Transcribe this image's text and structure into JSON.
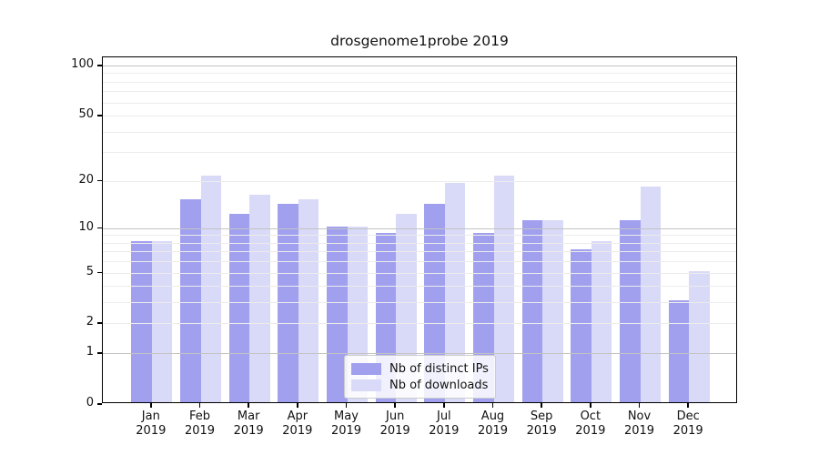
{
  "header": {
    "title": "drosgenome1probe 2019"
  },
  "chart_data": {
    "type": "bar",
    "title": "drosgenome1probe 2019",
    "categories": [
      "Jan",
      "Feb",
      "Mar",
      "Apr",
      "May",
      "Jun",
      "Jul",
      "Aug",
      "Sep",
      "Oct",
      "Nov",
      "Dec"
    ],
    "x_sublabel": "2019",
    "series": [
      {
        "name": "Nb of distinct IPs",
        "color": "#a0a0ef",
        "values": [
          8,
          15,
          12,
          14,
          10,
          9,
          14,
          9,
          11,
          7,
          11,
          3
        ]
      },
      {
        "name": "Nb of downloads",
        "color": "#d9d9f8",
        "values": [
          8,
          21,
          16,
          15,
          10,
          12,
          19,
          21,
          11,
          8,
          18,
          5
        ]
      }
    ],
    "xlabel": "",
    "ylabel": "",
    "scale": "log1p",
    "ylim": [
      0,
      112
    ],
    "yticks": [
      0,
      1,
      2,
      5,
      10,
      20,
      50,
      100
    ],
    "grid_major": [
      1,
      10,
      100
    ],
    "grid_minor": [
      2,
      3,
      4,
      5,
      6,
      7,
      8,
      9,
      20,
      30,
      40,
      50,
      60,
      70,
      80,
      90
    ],
    "grid": true,
    "legend_position": "lower-center",
    "colors": {
      "spine": "#000000",
      "grid_major": "#c3c3c3",
      "grid_minor": "#ececec",
      "legend_border": "#cccccc"
    }
  }
}
